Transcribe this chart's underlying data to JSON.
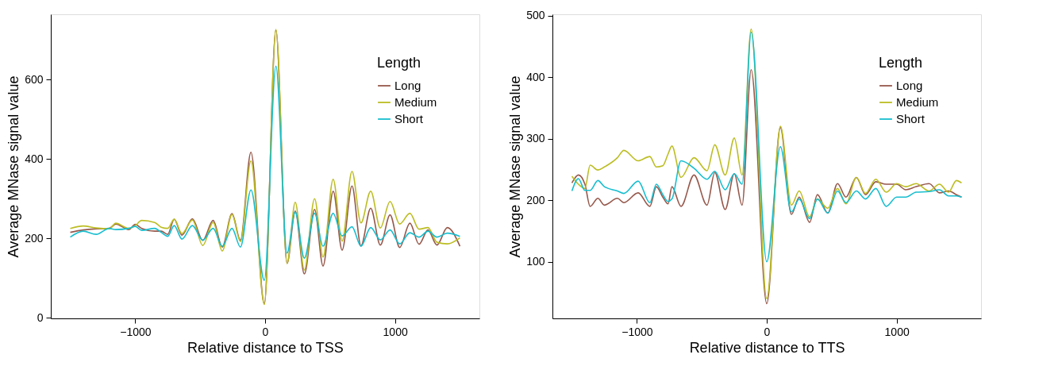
{
  "chart_data": [
    {
      "type": "line",
      "xlabel": "Relative distance to TSS",
      "ylabel": "Average MNase signal value",
      "legend_title": "Length",
      "legend": "top right",
      "xlim": [
        -1650,
        1650
      ],
      "xticks": [
        -1000,
        0,
        1000
      ],
      "ylim": [
        -2,
        765
      ],
      "yticks": [
        0,
        200,
        400,
        600
      ],
      "x": [
        -1500,
        -1400,
        -1300,
        -1200,
        -1150,
        -1050,
        -1000,
        -950,
        -850,
        -800,
        -750,
        -700,
        -640,
        -560,
        -480,
        -400,
        -330,
        -255,
        -190,
        -109,
        -6,
        83,
        169,
        232,
        302,
        381,
        446,
        524,
        593,
        669,
        738,
        813,
        887,
        962,
        1036,
        1115,
        1185,
        1254,
        1323,
        1403,
        1500
      ],
      "series": [
        {
          "name": "Long",
          "color": "#96584b",
          "values": [
            215,
            221,
            224,
            225,
            236,
            222,
            235,
            225,
            218,
            218,
            210,
            248,
            208,
            249,
            195,
            245,
            178,
            262,
            195,
            417,
            35,
            725,
            137,
            269,
            110,
            273,
            130,
            319,
            170,
            332,
            181,
            276,
            183,
            259,
            177,
            238,
            185,
            221,
            183,
            227,
            180
          ]
        },
        {
          "name": "Medium",
          "color": "#bcbd22",
          "values": [
            225,
            231,
            226,
            224,
            238,
            225,
            232,
            245,
            240,
            228,
            225,
            248,
            212,
            246,
            182,
            240,
            168,
            260,
            192,
            395,
            33,
            727,
            137,
            291,
            120,
            300,
            153,
            349,
            193,
            369,
            239,
            319,
            226,
            293,
            236,
            263,
            223,
            227,
            190,
            186,
            201
          ]
        },
        {
          "name": "Short",
          "color": "#17becf",
          "values": [
            203,
            218,
            210,
            225,
            222,
            225,
            230,
            220,
            225,
            215,
            205,
            232,
            198,
            232,
            195,
            225,
            180,
            225,
            178,
            322,
            94,
            634,
            163,
            266,
            150,
            263,
            180,
            263,
            206,
            229,
            180,
            227,
            196,
            221,
            186,
            214,
            203,
            218,
            203,
            213,
            205
          ]
        }
      ]
    },
    {
      "type": "line",
      "xlabel": "Relative distance to TTS",
      "ylabel": "Average MNase signal value",
      "legend_title": "Length",
      "legend": "top right",
      "xlim": [
        -1650,
        1650
      ],
      "xticks": [
        -1000,
        0,
        1000
      ],
      "ylim": [
        8,
        502
      ],
      "yticks": [
        100,
        200,
        300,
        400,
        500
      ],
      "x": [
        -1500,
        -1450,
        -1400,
        -1360,
        -1300,
        -1250,
        -1150,
        -1100,
        -990,
        -900,
        -850,
        -800,
        -760,
        -730,
        -660,
        -560,
        -460,
        -400,
        -320,
        -250,
        -190,
        -120,
        0,
        105,
        190,
        250,
        330,
        390,
        470,
        545,
        610,
        690,
        760,
        840,
        920,
        1000,
        1070,
        1150,
        1250,
        1330,
        1400,
        1460,
        1500
      ],
      "series": [
        {
          "name": "Long",
          "color": "#96584b",
          "values": [
            228,
            241,
            226,
            190,
            203,
            192,
            203,
            196,
            212,
            190,
            222,
            205,
            194,
            222,
            190,
            241,
            192,
            245,
            185,
            243,
            192,
            412,
            32,
            318,
            177,
            205,
            164,
            209,
            179,
            227,
            205,
            237,
            209,
            230,
            226,
            226,
            217,
            222,
            227,
            212,
            215,
            209,
            205
          ]
        },
        {
          "name": "Medium",
          "color": "#bcbd22",
          "values": [
            239,
            226,
            219,
            257,
            249,
            254,
            269,
            281,
            264,
            271,
            254,
            256,
            275,
            288,
            237,
            269,
            248,
            290,
            241,
            301,
            241,
            478,
            40,
            320,
            192,
            215,
            173,
            202,
            187,
            219,
            194,
            237,
            211,
            234,
            213,
            227,
            222,
            227,
            215,
            226,
            213,
            232,
            228
          ]
        },
        {
          "name": "Short",
          "color": "#17becf",
          "values": [
            215,
            235,
            216,
            216,
            232,
            222,
            215,
            211,
            231,
            196,
            226,
            209,
            198,
            202,
            264,
            252,
            234,
            247,
            217,
            243,
            226,
            473,
            100,
            287,
            181,
            202,
            170,
            202,
            179,
            215,
            196,
            215,
            202,
            219,
            190,
            205,
            205,
            213,
            214,
            217,
            207,
            207,
            205
          ]
        }
      ]
    }
  ]
}
